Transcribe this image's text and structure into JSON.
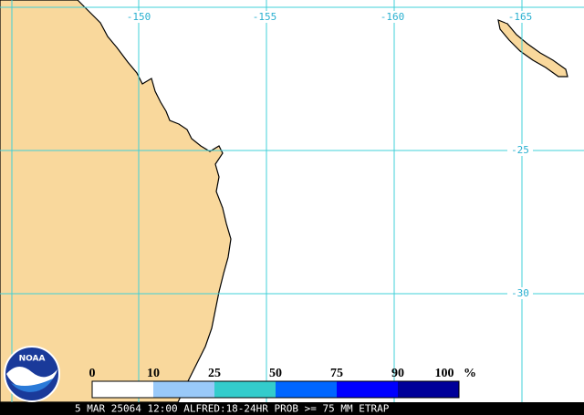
{
  "map": {
    "longitude_labels": [
      "-150",
      "-155",
      "-160",
      "-165"
    ],
    "latitude_labels": [
      "-25",
      "-30"
    ],
    "legend": {
      "ticks": [
        "0",
        "10",
        "25",
        "50",
        "75",
        "90",
        "100"
      ],
      "unit": "%"
    },
    "logo": "NOAA",
    "footer": "5 MAR 25064 12:00 ALFRED:18-24HR PROB >= 75 MM ETRAP"
  }
}
